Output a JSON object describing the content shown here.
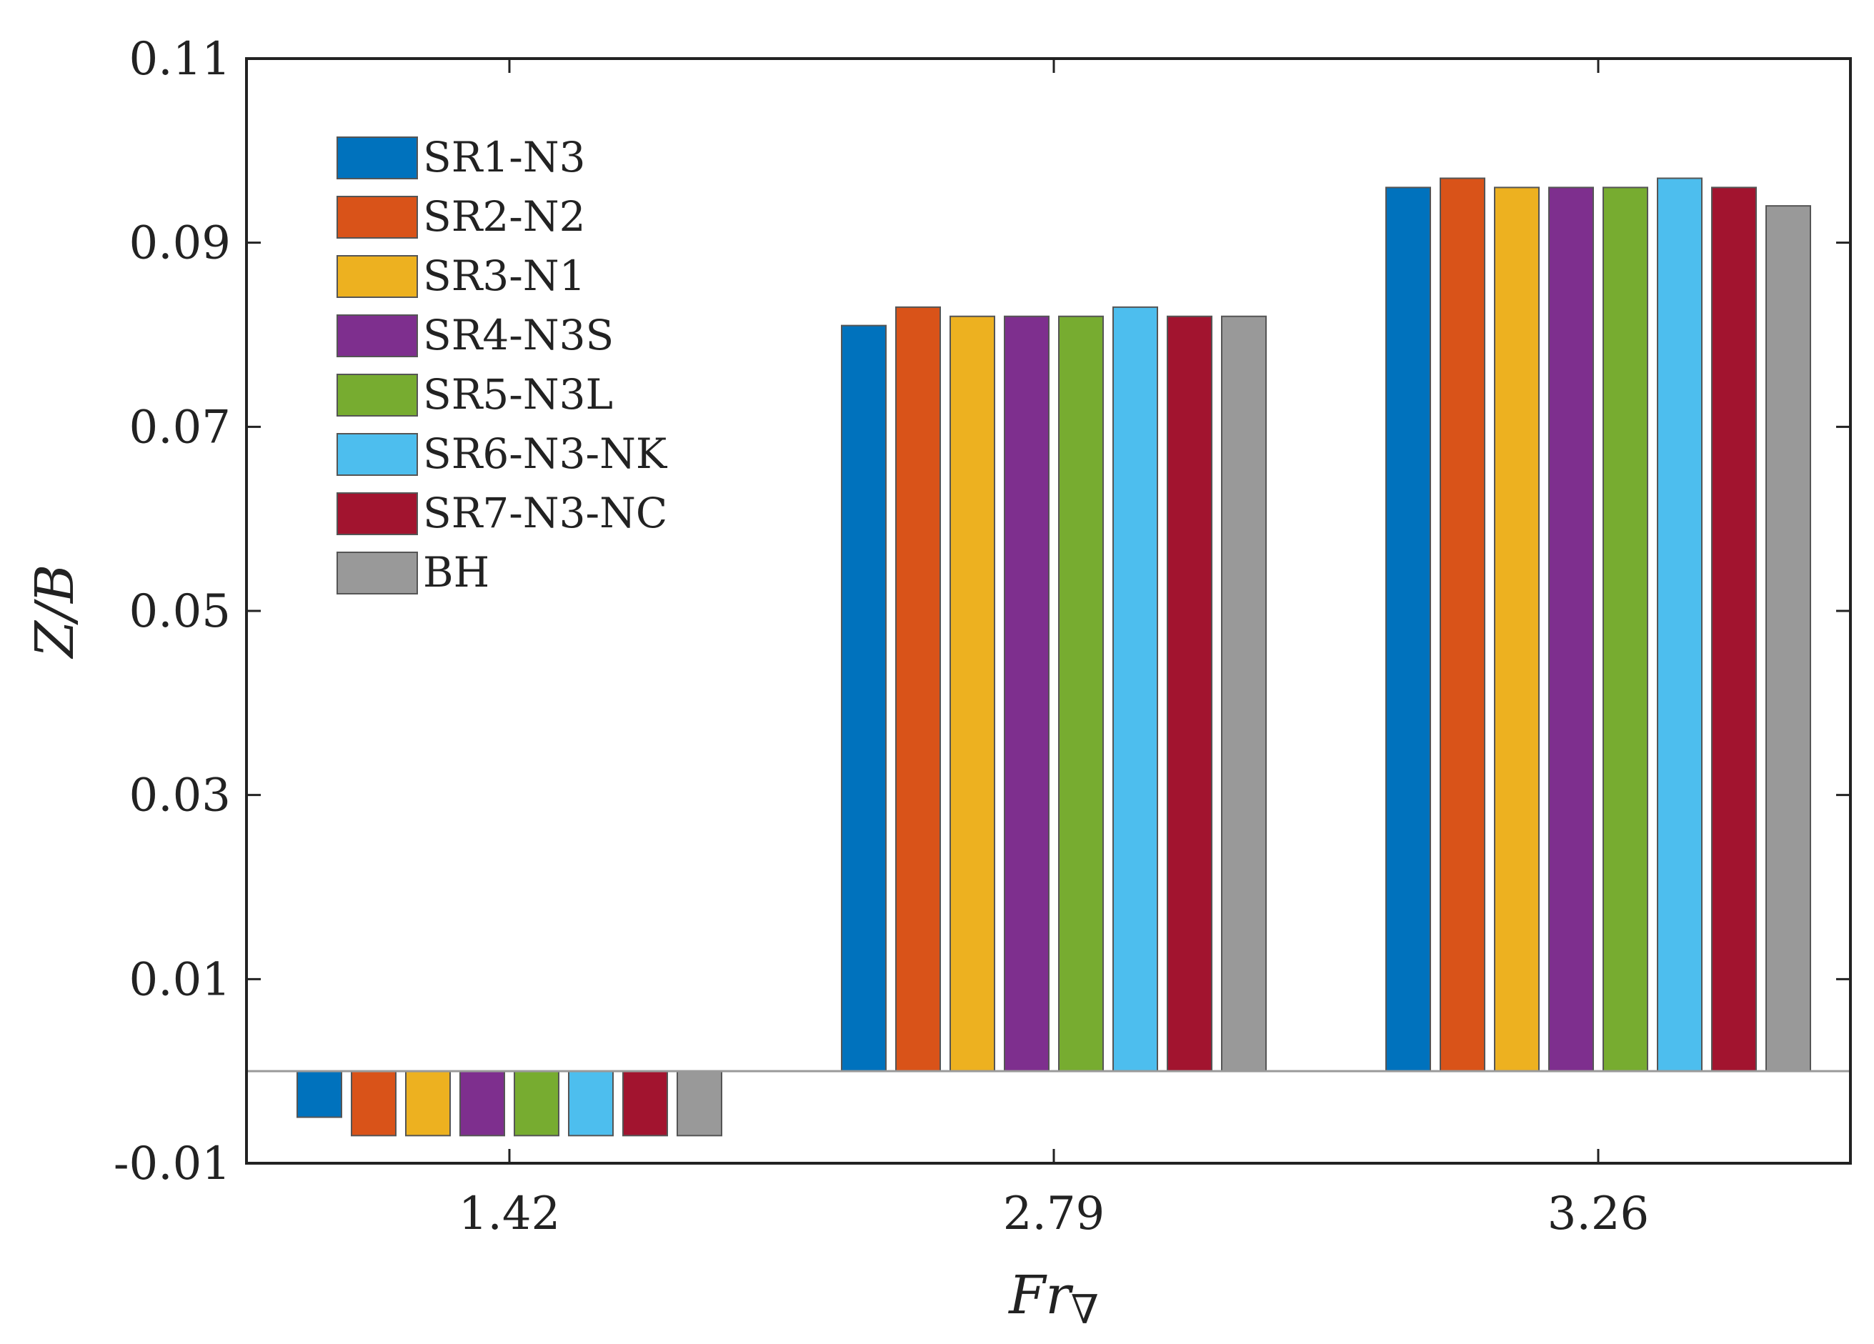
{
  "chart_data": {
    "type": "bar",
    "title": "",
    "xlabel": "Fr",
    "xlabel_sub": "∇",
    "ylabel": "Z/B",
    "categories": [
      "1.42",
      "2.79",
      "3.26"
    ],
    "ylim": [
      -0.01,
      0.11
    ],
    "yticks": [
      "-0.01",
      "0.01",
      "0.03",
      "0.05",
      "0.07",
      "0.09",
      "0.11"
    ],
    "ytick_values": [
      -0.01,
      0.01,
      0.03,
      0.05,
      0.07,
      0.09,
      0.11
    ],
    "grid": false,
    "legend_position": "top-left",
    "series": [
      {
        "name": "SR1-N3",
        "color": "#0072BD",
        "values": [
          -0.005,
          0.081,
          0.096
        ]
      },
      {
        "name": "SR2-N2",
        "color": "#D95319",
        "values": [
          -0.007,
          0.083,
          0.097
        ]
      },
      {
        "name": "SR3-N1",
        "color": "#EDB120",
        "values": [
          -0.007,
          0.082,
          0.096
        ]
      },
      {
        "name": "SR4-N3S",
        "color": "#7E2F8E",
        "values": [
          -0.007,
          0.082,
          0.096
        ]
      },
      {
        "name": "SR5-N3L",
        "color": "#77AC30",
        "values": [
          -0.007,
          0.082,
          0.096
        ]
      },
      {
        "name": "SR6-N3-NK",
        "color": "#4DBEEE",
        "values": [
          -0.007,
          0.083,
          0.097
        ]
      },
      {
        "name": "SR7-N3-NC",
        "color": "#A2142F",
        "values": [
          -0.007,
          0.082,
          0.096
        ]
      },
      {
        "name": "BH",
        "color": "#999999",
        "values": [
          -0.007,
          0.082,
          0.094
        ]
      }
    ]
  }
}
